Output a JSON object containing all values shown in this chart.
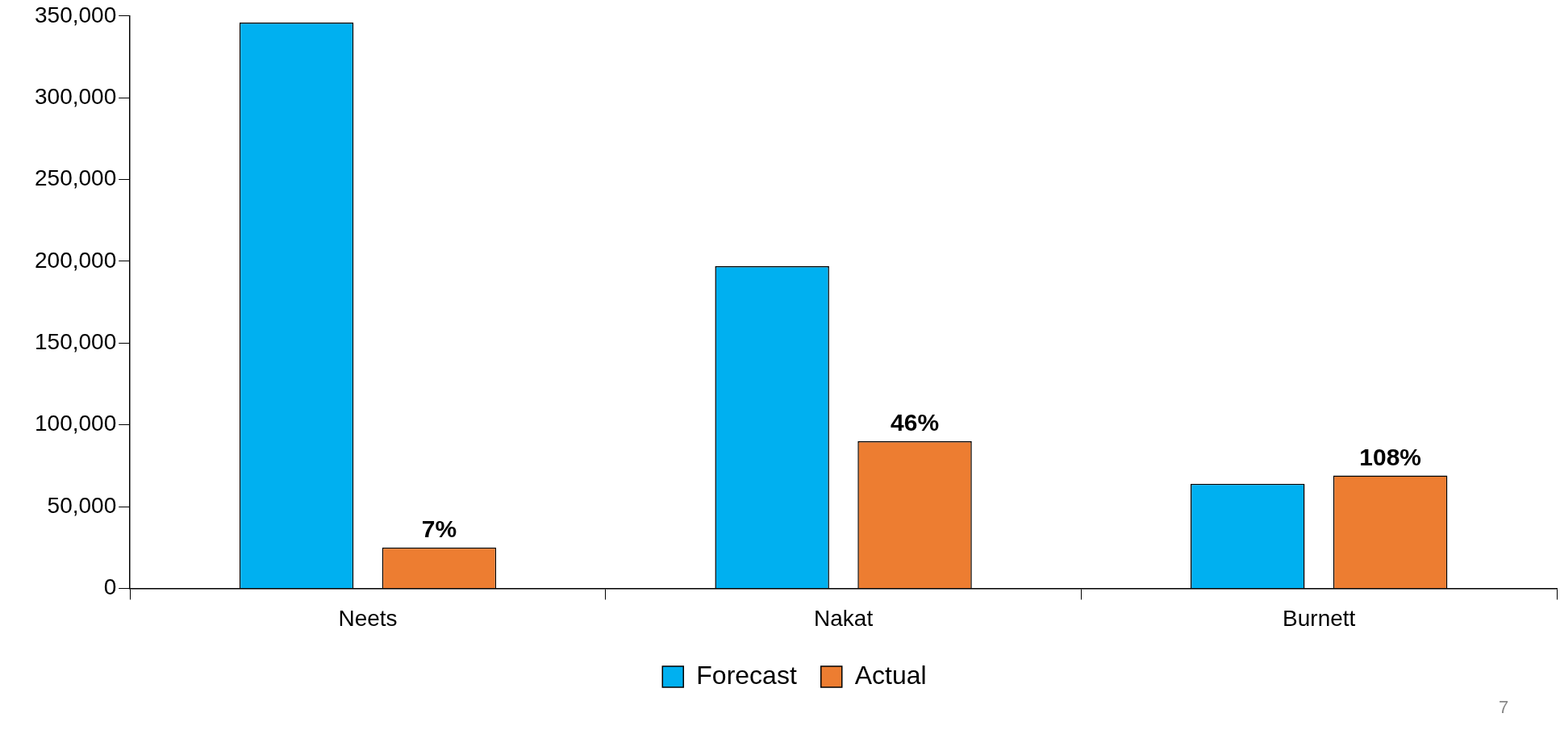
{
  "chart_data": {
    "type": "bar",
    "categories": [
      "Neets",
      "Nakat",
      "Burnett"
    ],
    "series": [
      {
        "name": "Forecast",
        "color": "#00b0f0",
        "values": [
          346000,
          197000,
          64000
        ]
      },
      {
        "name": "Actual",
        "color": "#ed7d31",
        "values": [
          25000,
          90000,
          69000
        ]
      }
    ],
    "ylim": [
      0,
      350000
    ],
    "yticks": [
      {
        "value": 0,
        "label": "0"
      },
      {
        "value": 50000,
        "label": "50,000"
      },
      {
        "value": 100000,
        "label": "100,000"
      },
      {
        "value": 150000,
        "label": "150,000"
      },
      {
        "value": 200000,
        "label": "200,000"
      },
      {
        "value": 250000,
        "label": "250,000"
      },
      {
        "value": 300000,
        "label": "300,000"
      },
      {
        "value": 350000,
        "label": "350,000"
      }
    ],
    "grid": false,
    "legend": "bottom",
    "annotations": [
      "7%",
      "46%",
      "108%",
      "7"
    ]
  }
}
